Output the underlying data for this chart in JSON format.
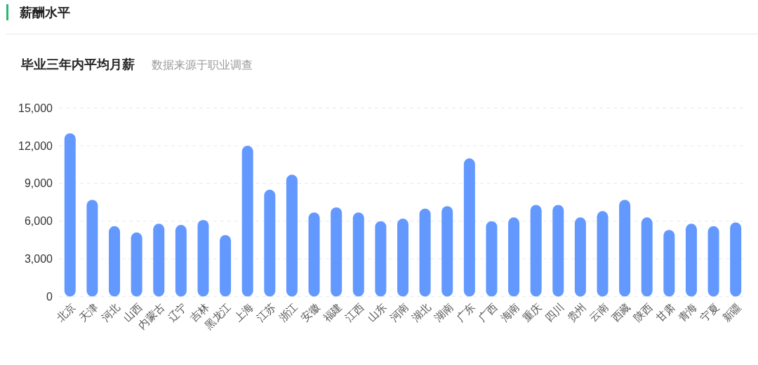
{
  "chart_data": {
    "type": "bar",
    "title": "薪酬水平",
    "subtitle": "毕业三年内平均月薪",
    "annotations": [
      "数据来源于职业调查"
    ],
    "categories": [
      "北京",
      "天津",
      "河北",
      "山西",
      "内蒙古",
      "辽宁",
      "吉林",
      "黑龙江",
      "上海",
      "江苏",
      "浙江",
      "安徽",
      "福建",
      "江西",
      "山东",
      "河南",
      "湖北",
      "湖南",
      "广东",
      "广西",
      "海南",
      "重庆",
      "四川",
      "贵州",
      "云南",
      "西藏",
      "陕西",
      "甘肃",
      "青海",
      "宁夏",
      "新疆"
    ],
    "values": [
      13000,
      7700,
      5600,
      5100,
      5800,
      5700,
      6100,
      4900,
      12000,
      8500,
      9700,
      6700,
      7100,
      6700,
      6000,
      6200,
      7000,
      7200,
      11000,
      6000,
      6300,
      7300,
      7300,
      6300,
      6800,
      7700,
      6300,
      5300,
      5800,
      5600,
      5900
    ],
    "color": "#6399ff",
    "ylim": [
      0,
      15000
    ],
    "yticks": [
      0,
      {
        "value": 3000,
        "label": "3,000"
      },
      {
        "value": 6000,
        "label": "6,000"
      },
      {
        "value": 9000,
        "label": "9,000"
      },
      {
        "value": 12000,
        "label": "12,000"
      },
      {
        "value": 15000,
        "label": "15,000"
      }
    ],
    "grid": "y"
  }
}
